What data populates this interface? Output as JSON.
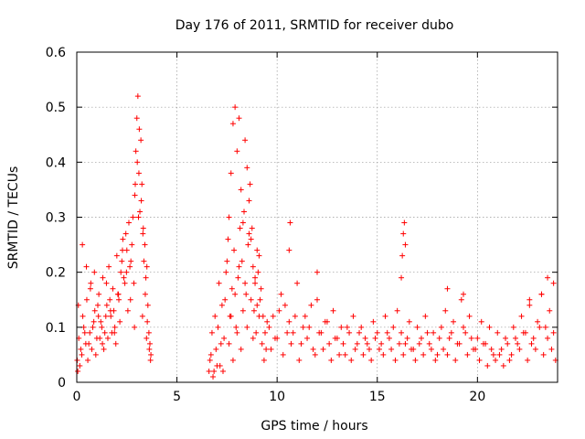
{
  "chart_data": {
    "type": "scatter",
    "title": "Day 176 of 2011, SRMTID for receiver dubo",
    "xlabel": "GPS time / hours",
    "ylabel": "SRMTID / TECUs",
    "xlim": [
      0,
      24
    ],
    "ylim": [
      0,
      0.6
    ],
    "x_ticks": [
      0,
      5,
      10,
      15,
      20
    ],
    "x_tick_labels": [
      "0",
      "5",
      "10",
      "15",
      "20"
    ],
    "y_ticks": [
      0,
      0.1,
      0.2,
      0.3,
      0.4,
      0.5,
      0.6
    ],
    "y_tick_labels": [
      "0",
      "0.1",
      "0.2",
      "0.3",
      "0.4",
      "0.5",
      "0.6"
    ],
    "grid": true,
    "marker": "+",
    "series": [
      {
        "name": "SRMTID",
        "color": "#ff0000",
        "x": [
          0.02,
          0.1,
          0.2,
          0.3,
          0.4,
          0.5,
          0.6,
          0.7,
          0.8,
          0.9,
          1.0,
          1.1,
          1.2,
          1.3,
          1.4,
          1.5,
          1.6,
          1.7,
          1.8,
          1.9,
          2.0,
          2.1,
          2.2,
          2.3,
          2.4,
          2.5,
          2.6,
          2.7,
          2.8,
          2.9,
          2.95,
          3.0,
          3.05,
          3.1,
          3.15,
          3.2,
          3.25,
          3.3,
          3.35,
          3.4,
          3.45,
          3.5,
          3.55,
          3.6,
          3.65,
          3.7,
          0.05,
          0.15,
          0.25,
          0.35,
          0.45,
          0.55,
          0.65,
          0.75,
          0.85,
          0.95,
          1.05,
          1.15,
          1.25,
          1.35,
          1.45,
          1.55,
          1.65,
          1.75,
          1.85,
          1.95,
          2.05,
          2.15,
          2.25,
          2.35,
          2.45,
          2.55,
          2.65,
          2.75,
          2.85,
          2.92,
          3.02,
          3.12,
          3.22,
          3.32,
          3.42,
          3.52,
          3.62,
          0.08,
          0.28,
          0.48,
          0.68,
          0.88,
          1.08,
          1.28,
          1.48,
          1.68,
          1.88,
          2.08,
          2.28,
          2.48,
          2.68,
          2.88,
          3.08,
          3.28,
          3.48,
          3.68,
          6.6,
          6.7,
          6.8,
          6.9,
          7.0,
          7.1,
          7.2,
          7.3,
          7.4,
          7.5,
          7.6,
          7.7,
          7.8,
          7.9,
          8.0,
          8.1,
          8.2,
          8.3,
          8.4,
          8.5,
          8.6,
          8.7,
          8.8,
          8.9,
          9.0,
          9.1,
          9.2,
          9.3,
          9.4,
          9.5,
          6.65,
          6.75,
          6.85,
          6.95,
          7.05,
          7.15,
          7.25,
          7.35,
          7.45,
          7.55,
          7.65,
          7.75,
          7.85,
          7.95,
          8.05,
          8.15,
          8.25,
          8.35,
          8.45,
          8.55,
          8.65,
          8.75,
          8.85,
          8.95,
          9.05,
          9.15,
          9.25,
          9.35,
          9.45,
          7.6,
          7.7,
          7.8,
          7.9,
          8.0,
          8.1,
          8.2,
          8.3,
          8.4,
          8.5,
          8.6,
          8.7,
          8.8,
          8.9,
          9.0,
          9.1,
          9.6,
          9.8,
          10.0,
          10.2,
          10.4,
          10.6,
          10.8,
          11.0,
          11.2,
          11.4,
          11.6,
          11.8,
          12.0,
          12.2,
          12.4,
          12.6,
          12.8,
          13.0,
          13.2,
          13.4,
          13.6,
          13.8,
          14.0,
          14.2,
          14.4,
          14.6,
          14.8,
          15.0,
          15.2,
          15.4,
          15.6,
          15.8,
          16.0,
          16.2,
          16.4,
          16.6,
          16.8,
          17.0,
          17.2,
          17.4,
          17.6,
          17.8,
          18.0,
          18.2,
          18.4,
          18.6,
          18.8,
          19.0,
          19.2,
          19.4,
          19.6,
          19.8,
          20.0,
          20.2,
          20.4,
          20.6,
          20.8,
          21.0,
          21.2,
          21.4,
          21.6,
          21.8,
          22.0,
          22.2,
          22.4,
          22.6,
          22.8,
          23.0,
          23.2,
          23.4,
          23.6,
          23.8,
          9.7,
          9.9,
          10.1,
          10.3,
          10.5,
          10.7,
          10.9,
          11.1,
          11.3,
          11.5,
          11.7,
          11.9,
          12.1,
          12.3,
          12.5,
          12.7,
          12.9,
          13.1,
          13.3,
          13.5,
          13.7,
          13.9,
          14.1,
          14.3,
          14.5,
          14.7,
          14.9,
          15.1,
          15.3,
          15.5,
          15.7,
          15.9,
          16.1,
          16.3,
          16.5,
          16.7,
          16.9,
          17.1,
          17.3,
          17.5,
          17.7,
          17.9,
          18.1,
          18.3,
          18.5,
          18.7,
          18.9,
          19.1,
          19.3,
          19.5,
          19.7,
          19.9,
          20.1,
          20.3,
          20.5,
          20.7,
          20.9,
          21.1,
          21.3,
          21.5,
          21.7,
          21.9,
          22.1,
          22.3,
          22.5,
          22.7,
          22.9,
          23.1,
          23.3,
          23.5,
          23.7,
          23.9,
          10.6,
          10.65,
          12.0,
          16.2,
          16.25,
          16.3,
          16.35,
          16.4,
          18.5,
          19.3,
          22.6,
          23.2,
          23.5,
          23.8
        ],
        "y": [
          0.04,
          0.08,
          0.06,
          0.12,
          0.09,
          0.15,
          0.07,
          0.18,
          0.1,
          0.13,
          0.08,
          0.16,
          0.11,
          0.19,
          0.09,
          0.14,
          0.21,
          0.12,
          0.17,
          0.1,
          0.23,
          0.15,
          0.2,
          0.26,
          0.18,
          0.24,
          0.29,
          0.22,
          0.3,
          0.34,
          0.42,
          0.48,
          0.52,
          0.38,
          0.31,
          0.44,
          0.36,
          0.27,
          0.22,
          0.25,
          0.19,
          0.21,
          0.14,
          0.09,
          0.07,
          0.05,
          0.02,
          0.03,
          0.05,
          0.1,
          0.07,
          0.04,
          0.09,
          0.06,
          0.11,
          0.05,
          0.14,
          0.08,
          0.1,
          0.06,
          0.12,
          0.08,
          0.15,
          0.09,
          0.13,
          0.07,
          0.16,
          0.11,
          0.22,
          0.19,
          0.27,
          0.13,
          0.21,
          0.25,
          0.18,
          0.36,
          0.4,
          0.46,
          0.33,
          0.28,
          0.16,
          0.11,
          0.06,
          0.14,
          0.25,
          0.21,
          0.17,
          0.2,
          0.12,
          0.07,
          0.18,
          0.13,
          0.09,
          0.16,
          0.24,
          0.2,
          0.15,
          0.1,
          0.3,
          0.12,
          0.08,
          0.04,
          0.02,
          0.05,
          0.01,
          0.12,
          0.03,
          0.18,
          0.07,
          0.02,
          0.15,
          0.22,
          0.3,
          0.38,
          0.47,
          0.5,
          0.42,
          0.48,
          0.35,
          0.29,
          0.44,
          0.39,
          0.33,
          0.26,
          0.21,
          0.18,
          0.14,
          0.23,
          0.17,
          0.12,
          0.09,
          0.11,
          0.04,
          0.09,
          0.02,
          0.06,
          0.1,
          0.03,
          0.14,
          0.08,
          0.2,
          0.26,
          0.12,
          0.17,
          0.24,
          0.1,
          0.19,
          0.28,
          0.22,
          0.31,
          0.16,
          0.25,
          0.36,
          0.28,
          0.13,
          0.09,
          0.2,
          0.15,
          0.07,
          0.04,
          0.06,
          0.07,
          0.12,
          0.04,
          0.16,
          0.09,
          0.21,
          0.06,
          0.13,
          0.18,
          0.1,
          0.27,
          0.15,
          0.08,
          0.19,
          0.24,
          0.12,
          0.1,
          0.12,
          0.08,
          0.16,
          0.14,
          0.11,
          0.09,
          0.18,
          0.07,
          0.12,
          0.1,
          0.06,
          0.15,
          0.09,
          0.11,
          0.07,
          0.13,
          0.08,
          0.1,
          0.05,
          0.09,
          0.12,
          0.07,
          0.1,
          0.08,
          0.06,
          0.11,
          0.09,
          0.07,
          0.12,
          0.08,
          0.1,
          0.13,
          0.09,
          0.07,
          0.11,
          0.06,
          0.1,
          0.08,
          0.12,
          0.07,
          0.09,
          0.05,
          0.1,
          0.13,
          0.08,
          0.11,
          0.07,
          0.15,
          0.09,
          0.12,
          0.06,
          0.08,
          0.11,
          0.07,
          0.1,
          0.05,
          0.09,
          0.06,
          0.08,
          0.04,
          0.1,
          0.07,
          0.12,
          0.09,
          0.14,
          0.08,
          0.11,
          0.16,
          0.1,
          0.13,
          0.09,
          0.06,
          0.08,
          0.13,
          0.05,
          0.09,
          0.07,
          0.12,
          0.04,
          0.1,
          0.08,
          0.14,
          0.05,
          0.09,
          0.06,
          0.11,
          0.04,
          0.08,
          0.05,
          0.07,
          0.1,
          0.04,
          0.06,
          0.09,
          0.05,
          0.07,
          0.04,
          0.08,
          0.06,
          0.05,
          0.09,
          0.06,
          0.04,
          0.07,
          0.05,
          0.08,
          0.06,
          0.04,
          0.07,
          0.05,
          0.09,
          0.06,
          0.04,
          0.08,
          0.06,
          0.05,
          0.09,
          0.04,
          0.07,
          0.1,
          0.05,
          0.08,
          0.06,
          0.04,
          0.07,
          0.03,
          0.06,
          0.04,
          0.05,
          0.03,
          0.07,
          0.05,
          0.08,
          0.06,
          0.09,
          0.04,
          0.07,
          0.06,
          0.1,
          0.05,
          0.08,
          0.06,
          0.04,
          0.24,
          0.29,
          0.2,
          0.19,
          0.23,
          0.27,
          0.29,
          0.25,
          0.17,
          0.16,
          0.15,
          0.16,
          0.19,
          0.18
        ]
      }
    ]
  }
}
